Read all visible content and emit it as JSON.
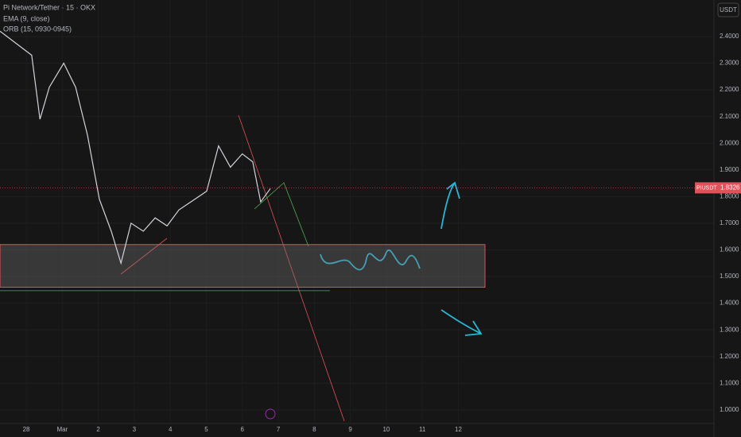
{
  "chart_data": {
    "type": "line",
    "title": "Pi Network/Tether · 15 · OKX",
    "indicators": [
      "EMA (9, close)",
      "ORB (15, 0930-0945)"
    ],
    "currency": "USDT",
    "symbol": "PIUSDT",
    "last_price": 1.8326,
    "xlim": [
      -0.73,
      19.1
    ],
    "xticks": [
      {
        "value": 0,
        "label": "28"
      },
      {
        "value": 1,
        "label": "Mar"
      },
      {
        "value": 2,
        "label": "2"
      },
      {
        "value": 3,
        "label": "3"
      },
      {
        "value": 4,
        "label": "4"
      },
      {
        "value": 5,
        "label": "5"
      },
      {
        "value": 6,
        "label": "6"
      },
      {
        "value": 7,
        "label": "7"
      },
      {
        "value": 8,
        "label": "8"
      },
      {
        "value": 9,
        "label": "9"
      },
      {
        "value": 10,
        "label": "10"
      },
      {
        "value": 11,
        "label": "11"
      },
      {
        "value": 12,
        "label": "12"
      }
    ],
    "ylim": [
      0.943,
      2.537
    ],
    "yticks": [
      {
        "value": 1.0,
        "label": "1.0000"
      },
      {
        "value": 1.1,
        "label": "1.1000"
      },
      {
        "value": 1.2,
        "label": "1.2000"
      },
      {
        "value": 1.3,
        "label": "1.3000"
      },
      {
        "value": 1.4,
        "label": "1.4000"
      },
      {
        "value": 1.5,
        "label": "1.5000"
      },
      {
        "value": 1.6,
        "label": "1.6000"
      },
      {
        "value": 1.7,
        "label": "1.7000"
      },
      {
        "value": 1.8,
        "label": "1.8000"
      },
      {
        "value": 1.9,
        "label": "1.9000"
      },
      {
        "value": 2.0,
        "label": "2.0000"
      },
      {
        "value": 2.1,
        "label": "2.1000"
      },
      {
        "value": 2.2,
        "label": "2.2000"
      },
      {
        "value": 2.3,
        "label": "2.3000"
      },
      {
        "value": 2.4,
        "label": "2.4000"
      }
    ],
    "grid": true,
    "zone": {
      "low": 1.46,
      "high": 1.62,
      "x_end": 12.74
    },
    "support_line": {
      "value": 1.447,
      "x_end": 8.43
    },
    "series": [
      {
        "color": "#d1d4dc",
        "x": [
          -0.73,
          0.15,
          0.38,
          0.64,
          1.04,
          1.37,
          1.7,
          2.03,
          2.36,
          2.63,
          2.91,
          3.25,
          3.58,
          3.91,
          4.24,
          4.57,
          5.01,
          5.34,
          5.67,
          6.0,
          6.29,
          6.51,
          6.78
        ],
        "values": [
          2.42,
          2.33,
          2.09,
          2.21,
          2.3,
          2.21,
          2.03,
          1.79,
          1.67,
          1.55,
          1.7,
          1.67,
          1.72,
          1.69,
          1.75,
          1.78,
          1.82,
          1.99,
          1.91,
          1.96,
          1.93,
          1.78,
          1.83
        ]
      }
    ]
  }
}
